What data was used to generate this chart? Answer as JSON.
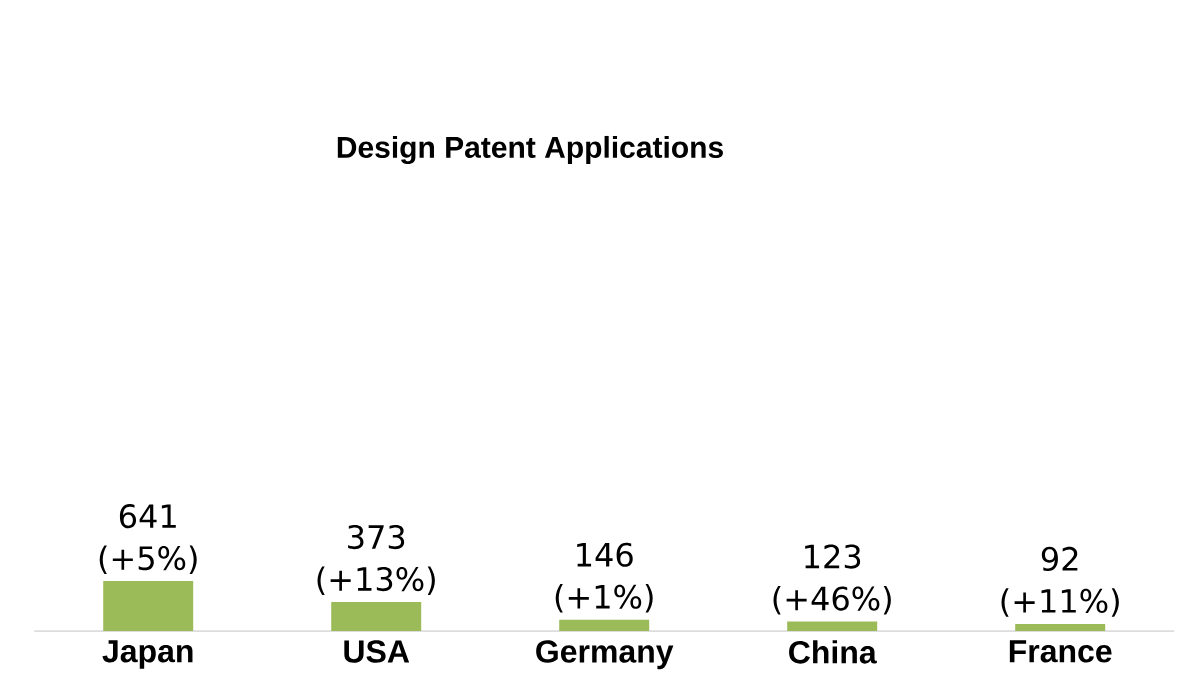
{
  "chart_data": {
    "type": "bar",
    "title": "Design Patent Applications",
    "categories": [
      "Japan",
      "USA",
      "Germany",
      "China",
      "France"
    ],
    "values": [
      641,
      373,
      146,
      123,
      92
    ],
    "value_labels": [
      "641 (+5%)",
      "373 (+13%)",
      "146 (+1%)",
      "123 (+46%)",
      "92 (+11%)"
    ],
    "color": "#9bbb59"
  }
}
